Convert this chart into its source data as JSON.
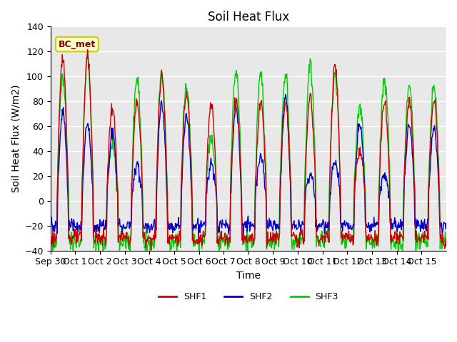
{
  "title": "Soil Heat Flux",
  "ylabel": "Soil Heat Flux (W/m2)",
  "xlabel": "Time",
  "ylim": [
    -40,
    140
  ],
  "background_color": "#e8e8e8",
  "fig_bg_color": "#ffffff",
  "grid_color": "#ffffff",
  "shf1_color": "#cc0000",
  "shf2_color": "#0000cc",
  "shf3_color": "#00cc00",
  "legend_label1": "SHF1",
  "legend_label2": "SHF2",
  "legend_label3": "SHF3",
  "annotation_text": "BC_met",
  "yticks": [
    -40,
    -20,
    0,
    20,
    40,
    60,
    80,
    100,
    120,
    140
  ],
  "xtick_labels": [
    "Sep 30",
    "Oct 1",
    "Oct 2",
    "Oct 3",
    "Oct 4",
    "Oct 5",
    "Oct 6",
    "Oct 7",
    "Oct 8",
    "Oct 9",
    "Oct 10",
    "Oct 11",
    "Oct 12",
    "Oct 13",
    "Oct 14",
    "Oct 15"
  ],
  "line_width": 1.0,
  "title_fontsize": 12,
  "tick_fontsize": 9,
  "label_fontsize": 10,
  "day_peak_shf1": [
    115,
    118,
    75,
    80,
    100,
    85,
    77,
    82,
    80,
    78,
    83,
    110,
    40,
    80,
    80,
    80
  ],
  "day_peak_shf2": [
    72,
    62,
    55,
    30,
    79,
    67,
    30,
    75,
    37,
    84,
    20,
    30,
    62,
    20,
    60,
    60
  ],
  "day_peak_shf3": [
    100,
    113,
    43,
    100,
    105,
    92,
    50,
    104,
    103,
    101,
    112,
    100,
    75,
    100,
    93,
    90
  ]
}
